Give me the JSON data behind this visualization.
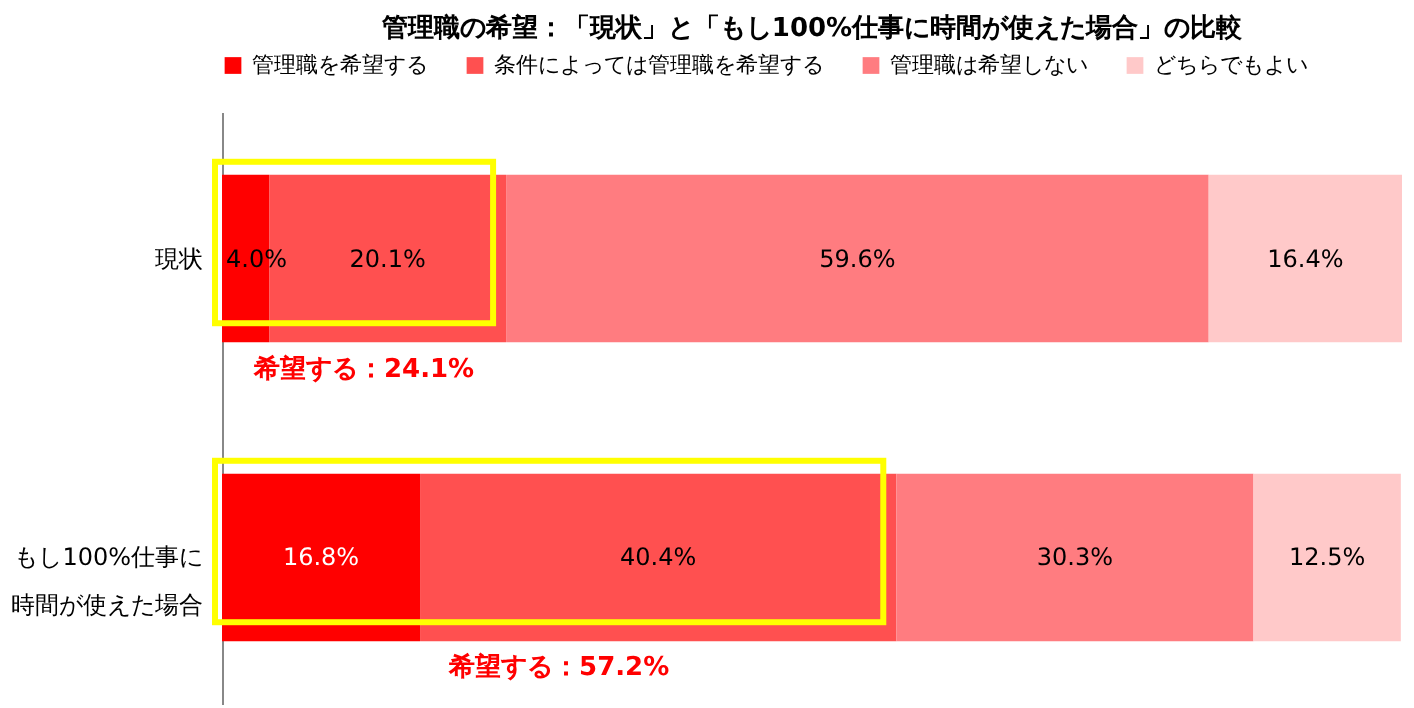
{
  "chart_data": {
    "type": "bar",
    "orientation": "horizontal",
    "stacked": true,
    "title": "管理職の希望：「現状」と「もし100%仕事に時間が使えた場合」の比較",
    "categories": [
      "現状",
      "もし100%仕事に時間が使えた場合"
    ],
    "series": [
      {
        "name": "管理職を希望する",
        "color": "#ff0000",
        "values": [
          4.0,
          16.8
        ],
        "value_labels": [
          "4.0%",
          "16.8%"
        ]
      },
      {
        "name": "条件によっては管理職を希望する",
        "color": "#ff5050",
        "values": [
          20.1,
          40.4
        ],
        "value_labels": [
          "20.1%",
          "40.4%"
        ]
      },
      {
        "name": "管理職は希望しない",
        "color": "#ff7c80",
        "values": [
          59.6,
          30.3
        ],
        "value_labels": [
          "59.6%",
          "30.3%"
        ]
      },
      {
        "name": "どちらでもよい",
        "color": "#ffc9c9",
        "values": [
          16.4,
          12.5
        ],
        "value_labels": [
          "16.4%",
          "12.5%"
        ]
      }
    ],
    "annotations": [
      "希望する：24.1%",
      "希望する：57.2%"
    ],
    "legend": "top",
    "tick_labels": "y"
  }
}
